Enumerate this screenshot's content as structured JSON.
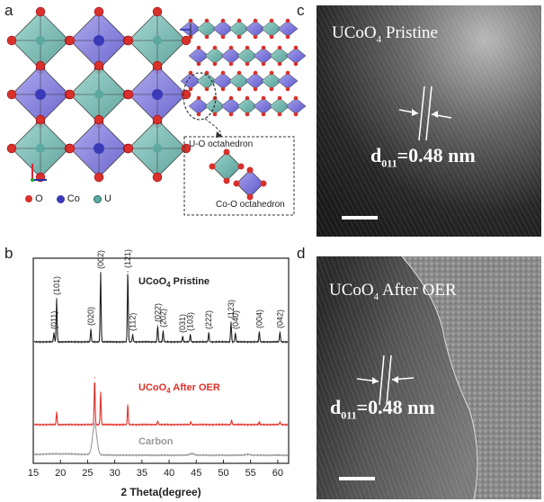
{
  "panels": {
    "a": {
      "label": "a",
      "legend": [
        {
          "symbol": "O",
          "color": "#d8302a"
        },
        {
          "symbol": "Co",
          "color": "#3a3ab8"
        },
        {
          "symbol": "U",
          "color": "#5aa8a0"
        }
      ],
      "octa_labels": {
        "u_o": "U-O octahedron",
        "co_o": "Co-O octahedron"
      }
    },
    "b": {
      "label": "b"
    },
    "c": {
      "label": "c",
      "title_main": "UCoO",
      "title_sub": "4",
      "title_tail": " Pristine",
      "d_main": "d",
      "d_sub": "011",
      "d_tail": "=0.48 nm"
    },
    "d": {
      "label": "d",
      "title_main": "UCoO",
      "title_sub": "4",
      "title_tail": " After OER",
      "d_main": "d",
      "d_sub": "011",
      "d_tail": "=0.48 nm"
    }
  },
  "chart_data": {
    "type": "line",
    "xlabel": "2 Theta(degree)",
    "ylabel": "",
    "xlim": [
      15,
      62
    ],
    "xticks": [
      15,
      20,
      25,
      30,
      35,
      40,
      45,
      50,
      55,
      60
    ],
    "series": [
      {
        "name": "UCoO4 Pristine",
        "name_main": "UCoO",
        "name_sub": "4",
        "name_tail": " Pristine",
        "color": "#222222",
        "peaks": [
          {
            "x": 18.8,
            "h": 10,
            "label": "(011)"
          },
          {
            "x": 19.3,
            "h": 48,
            "label": "(101)"
          },
          {
            "x": 25.6,
            "h": 14,
            "label": "(020)"
          },
          {
            "x": 27.4,
            "h": 77,
            "label": "(002)"
          },
          {
            "x": 32.4,
            "h": 78,
            "label": "(121)"
          },
          {
            "x": 33.3,
            "h": 8,
            "label": "(112)"
          },
          {
            "x": 37.9,
            "h": 18,
            "label": "(022)"
          },
          {
            "x": 38.9,
            "h": 12,
            "label": "(202)"
          },
          {
            "x": 42.5,
            "h": 6,
            "label": "(031)"
          },
          {
            "x": 43.9,
            "h": 8,
            "label": "(103)"
          },
          {
            "x": 47.3,
            "h": 10,
            "label": "(222)"
          },
          {
            "x": 51.4,
            "h": 22,
            "label": "(123)"
          },
          {
            "x": 52.2,
            "h": 10,
            "label": "(040)"
          },
          {
            "x": 56.6,
            "h": 11,
            "label": "(004)"
          },
          {
            "x": 60.4,
            "h": 11,
            "label": "(042)"
          }
        ]
      },
      {
        "name": "UCoO4 After OER",
        "name_main": "UCoO",
        "name_sub": "4",
        "name_tail": " After OER",
        "color": "#e0302a",
        "peaks": [
          {
            "x": 19.3,
            "h": 14
          },
          {
            "x": 26.3,
            "h": 52
          },
          {
            "x": 27.4,
            "h": 36
          },
          {
            "x": 32.4,
            "h": 22
          },
          {
            "x": 37.9,
            "h": 4
          },
          {
            "x": 44.0,
            "h": 3
          },
          {
            "x": 51.5,
            "h": 5
          },
          {
            "x": 56.6,
            "h": 3
          },
          {
            "x": 60.4,
            "h": 3
          }
        ]
      },
      {
        "name": "Carbon",
        "color": "#999999",
        "peaks": [
          {
            "x": 26.3,
            "h": 34
          },
          {
            "x": 44.2,
            "h": 2
          },
          {
            "x": 54.5,
            "h": 1
          }
        ]
      }
    ]
  }
}
